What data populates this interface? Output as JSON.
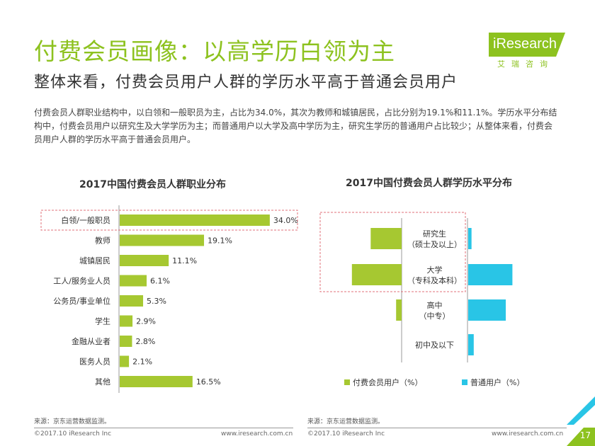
{
  "header": {
    "title": "付费会员画像：以高学历白领为主",
    "subtitle": "整体来看，付费会员用户人群的学历水平高于普通会员用户",
    "description": "付费会员人群职业结构中，以白领和一般职员为主，占比为34.0%，其次为教师和城镇居民，占比分别为19.1%和11.1%。学历水平分布结构中，付费会员用户以研究生及大学学历为主；而普通用户以大学及高中学历为主，研究生学历的普通用户占比较少；从整体来看，付费会员用户人群的学历水平高于普通会员用户。"
  },
  "logo": {
    "name": "iResearch",
    "sub": "艾瑞咨询"
  },
  "chart_data": [
    {
      "type": "bar",
      "orientation": "horizontal",
      "title": "2017中国付费会员人群职业分布",
      "categories": [
        "白领/一般职员",
        "教师",
        "城镇居民",
        "工人/服务业人员",
        "公务员/事业单位",
        "学生",
        "金融从业者",
        "医务人员",
        "其他"
      ],
      "values": [
        34.0,
        19.1,
        11.1,
        6.1,
        5.3,
        2.9,
        2.8,
        2.1,
        16.5
      ],
      "value_labels": [
        "34.0%",
        "19.1%",
        "11.1%",
        "6.1%",
        "5.3%",
        "2.9%",
        "2.8%",
        "2.1%",
        "16.5%"
      ],
      "color": "#a6c831",
      "highlight_index": 0,
      "xlim": [
        0,
        36
      ]
    },
    {
      "type": "bar",
      "orientation": "horizontal-diverging",
      "title": "2017中国付费会员人群学历水平分布",
      "categories": [
        [
          "研究生",
          "（硕士及以上）"
        ],
        [
          "大学",
          "（专科及本科）"
        ],
        [
          "高中",
          "（中专）"
        ],
        [
          "初中及以下"
        ]
      ],
      "series": [
        {
          "name": "付费会员用户（%）",
          "color": "#a6c831",
          "values": [
            28,
            45,
            5,
            0
          ]
        },
        {
          "name": "普通用户（%）",
          "color": "#29c5e6",
          "values": [
            3,
            40,
            34,
            5
          ]
        }
      ],
      "highlight_rows": [
        0,
        1
      ]
    }
  ],
  "sources": {
    "left": "来源：京东运营数据监测。",
    "right": "来源：京东运营数据监测。"
  },
  "footer": {
    "copyright_left": "©2017.10 iResearch Inc",
    "url_left": "www.iresearch.com.cn",
    "copyright_right": "©2017.10 iResearch Inc",
    "url_right": "www.iresearch.com.cn",
    "page": "17"
  }
}
